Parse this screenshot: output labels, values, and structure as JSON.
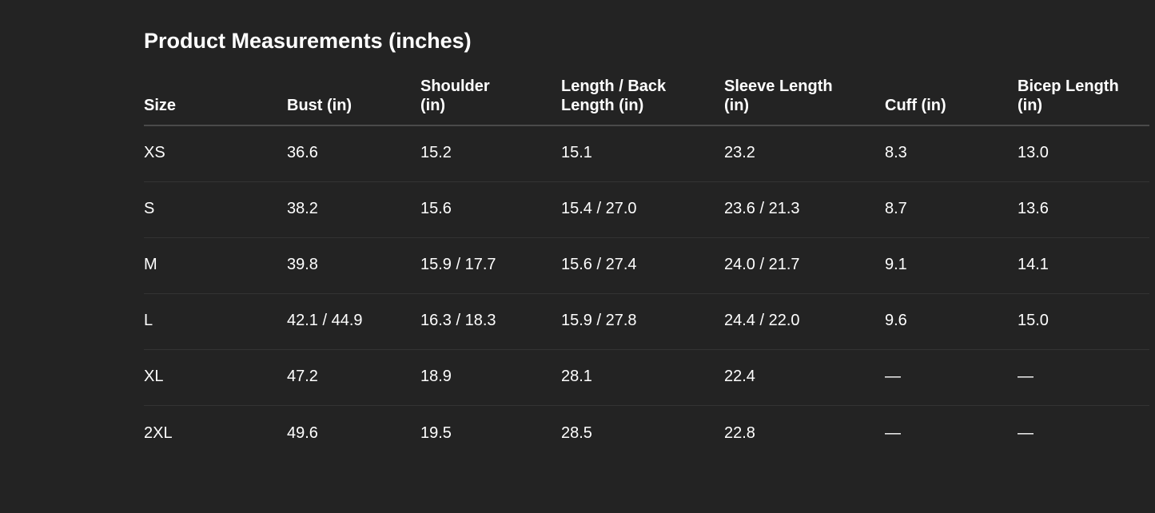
{
  "header": {
    "title": "Product Measurements (inches)"
  },
  "table": {
    "columns": [
      "Size",
      "Bust (in)",
      "Shoulder (in)",
      "Length / Back Length (in)",
      "Sleeve Length (in)",
      "Cuff (in)",
      "Bicep Length (in)"
    ],
    "rows": [
      [
        "XS",
        "36.6",
        "15.2",
        "15.1",
        "23.2",
        "8.3",
        "13.0"
      ],
      [
        "S",
        "38.2",
        "15.6",
        "15.4 / 27.0",
        "23.6 / 21.3",
        "8.7",
        "13.6"
      ],
      [
        "M",
        "39.8",
        "15.9 / 17.7",
        "15.6 / 27.4",
        "24.0 / 21.7",
        "9.1",
        "14.1"
      ],
      [
        "L",
        "42.1 / 44.9",
        "16.3 / 18.3",
        "15.9 / 27.8",
        "24.4 / 22.0",
        "9.6",
        "15.0"
      ],
      [
        "XL",
        "47.2",
        "18.9",
        "28.1",
        "22.4",
        "—",
        "—"
      ],
      [
        "2XL",
        "49.6",
        "19.5",
        "28.5",
        "22.8",
        "—",
        "—"
      ]
    ]
  }
}
